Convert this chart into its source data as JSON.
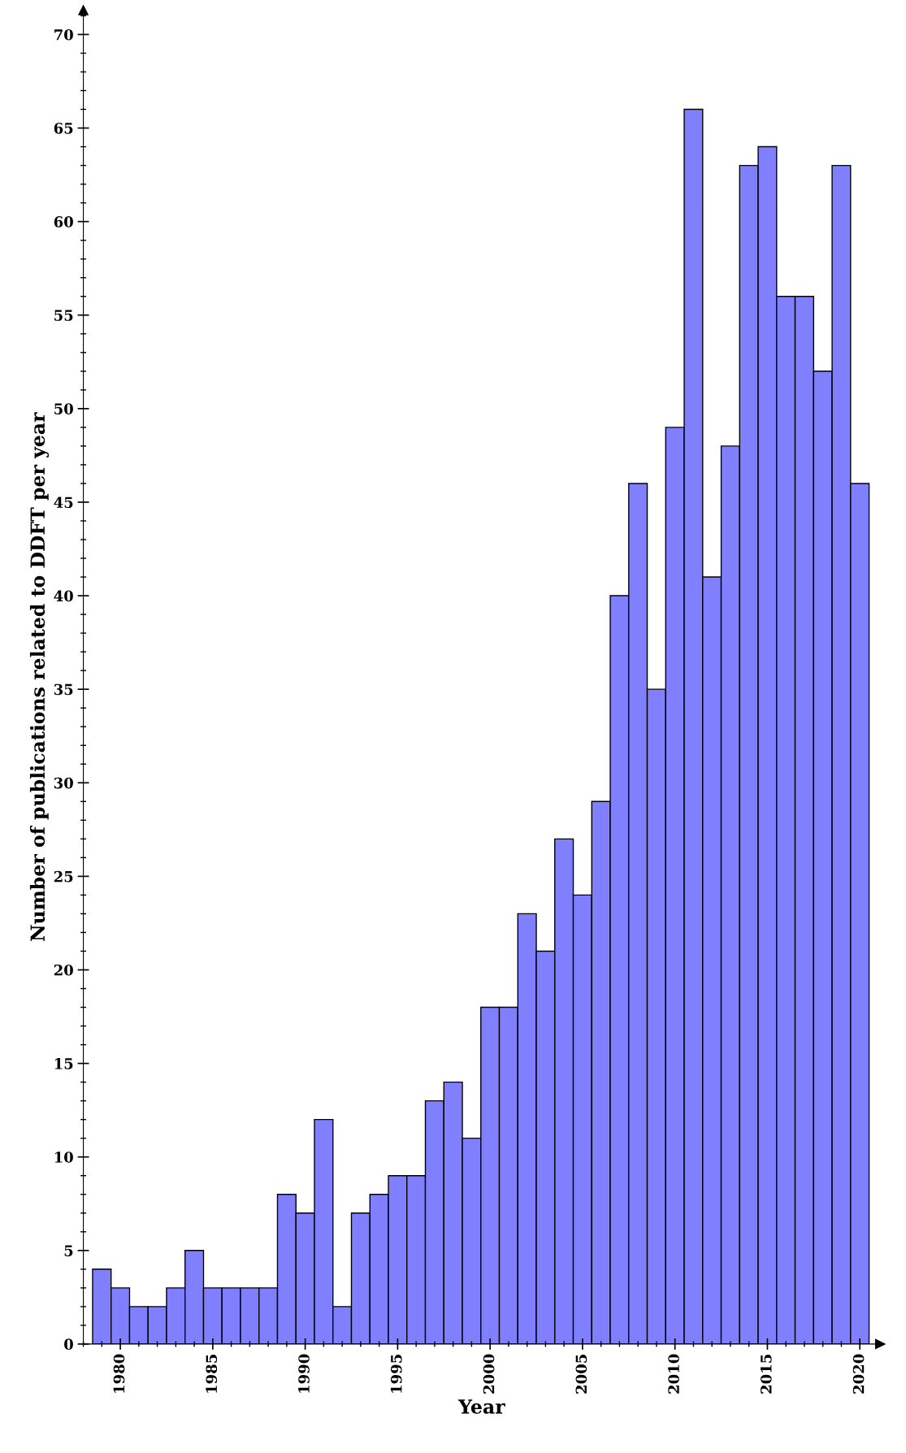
{
  "chart_data": {
    "type": "bar",
    "xlabel": "Year",
    "ylabel": "Number of publications related to DDFT per year",
    "x": [
      1979,
      1980,
      1981,
      1982,
      1983,
      1984,
      1985,
      1986,
      1987,
      1988,
      1989,
      1990,
      1991,
      1992,
      1993,
      1994,
      1995,
      1996,
      1997,
      1998,
      1999,
      2000,
      2001,
      2002,
      2003,
      2004,
      2005,
      2006,
      2007,
      2008,
      2009,
      2010,
      2011,
      2012,
      2013,
      2014,
      2015,
      2016,
      2017,
      2018,
      2019,
      2020
    ],
    "values": [
      4,
      3,
      2,
      2,
      3,
      5,
      3,
      3,
      3,
      3,
      8,
      7,
      12,
      2,
      7,
      8,
      9,
      9,
      13,
      14,
      11,
      18,
      18,
      23,
      21,
      27,
      24,
      29,
      40,
      46,
      35,
      49,
      66,
      41,
      48,
      63,
      64,
      56,
      56,
      52,
      63,
      46
    ],
    "color": "#8080ff",
    "xlim": [
      1978,
      2021.1
    ],
    "ylim": [
      0,
      71.3
    ],
    "xticks": [
      1980,
      1985,
      1990,
      1995,
      2000,
      2005,
      2010,
      2015,
      2020
    ],
    "yticks": [
      0,
      5,
      10,
      15,
      20,
      25,
      30,
      35,
      40,
      45,
      50,
      55,
      60,
      65,
      70
    ],
    "grid": false
  }
}
